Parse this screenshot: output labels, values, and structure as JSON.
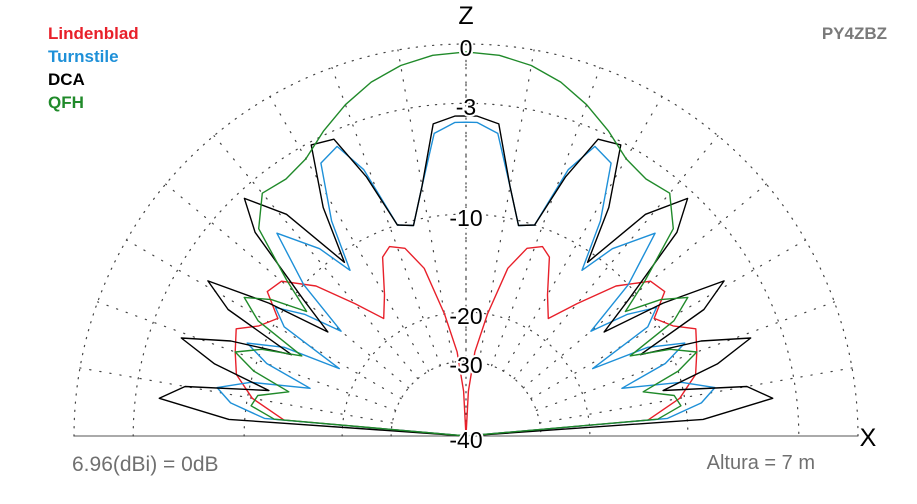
{
  "chart_data": {
    "type": "polar-elevation",
    "axis_labels": {
      "vertical": "Z",
      "horizontal": "X"
    },
    "ring_labels": [
      "0",
      "-3",
      "-10",
      "-20",
      "-30",
      "-40"
    ],
    "ring_levels_db": [
      0,
      -3,
      -10,
      -20,
      -30,
      -40
    ],
    "spoke_step_deg": 10,
    "series": [
      {
        "name": "Lindenblad",
        "color": "#e8202a",
        "points": [
          [
            0,
            -40
          ],
          [
            5,
            -14
          ],
          [
            10,
            -10.5
          ],
          [
            15,
            -9
          ],
          [
            20,
            -8.5
          ],
          [
            25,
            -8
          ],
          [
            28,
            -9.2
          ],
          [
            32,
            -10
          ],
          [
            36,
            -8.5
          ],
          [
            40,
            -8.8
          ],
          [
            45,
            -11
          ],
          [
            50,
            -15
          ],
          [
            55,
            -18
          ],
          [
            60,
            -16
          ],
          [
            65,
            -12.5
          ],
          [
            68,
            -11.8
          ],
          [
            72,
            -12.5
          ],
          [
            76,
            -15
          ],
          [
            80,
            -20
          ],
          [
            84,
            -28
          ],
          [
            87,
            -34
          ],
          [
            90,
            -40
          ]
        ]
      },
      {
        "name": "Turnstile",
        "color": "#1e90d8",
        "points": [
          [
            0,
            -40
          ],
          [
            5,
            -12
          ],
          [
            8,
            -9
          ],
          [
            11,
            -8
          ],
          [
            14,
            -10
          ],
          [
            17,
            -16
          ],
          [
            20,
            -11
          ],
          [
            23,
            -9
          ],
          [
            26,
            -12
          ],
          [
            28,
            -18
          ],
          [
            31,
            -11
          ],
          [
            34,
            -9.5
          ],
          [
            37,
            -12
          ],
          [
            40,
            -16
          ],
          [
            43,
            -10
          ],
          [
            47,
            -6.5
          ],
          [
            52,
            -9
          ],
          [
            55,
            -12
          ],
          [
            58,
            -8
          ],
          [
            62,
            -4.5
          ],
          [
            66,
            -4
          ],
          [
            69,
            -6
          ],
          [
            72,
            -10
          ],
          [
            76,
            -10.5
          ],
          [
            80,
            -8
          ],
          [
            84,
            -4.8
          ],
          [
            88,
            -4.2
          ],
          [
            90,
            -4.2
          ]
        ]
      },
      {
        "name": "DCA",
        "color": "#000000",
        "points": [
          [
            0,
            -40
          ],
          [
            4,
            -9
          ],
          [
            7,
            -4.5
          ],
          [
            10,
            -6
          ],
          [
            13,
            -12
          ],
          [
            16,
            -7.5
          ],
          [
            19,
            -5
          ],
          [
            22,
            -8
          ],
          [
            25,
            -13
          ],
          [
            28,
            -7
          ],
          [
            31,
            -5
          ],
          [
            34,
            -9
          ],
          [
            37,
            -15
          ],
          [
            40,
            -11
          ],
          [
            44,
            -5.5
          ],
          [
            47,
            -3.5
          ],
          [
            51,
            -6
          ],
          [
            55,
            -11
          ],
          [
            58,
            -7
          ],
          [
            62,
            -3.2
          ],
          [
            66,
            -3.5
          ],
          [
            69,
            -6.5
          ],
          [
            72,
            -10
          ],
          [
            76,
            -10.5
          ],
          [
            80,
            -8
          ],
          [
            84,
            -4.2
          ],
          [
            88,
            -3.8
          ],
          [
            90,
            -3.8
          ]
        ]
      },
      {
        "name": "QFH",
        "color": "#208a2a",
        "points": [
          [
            0,
            -40
          ],
          [
            5,
            -13
          ],
          [
            8,
            -10.5
          ],
          [
            11,
            -11
          ],
          [
            14,
            -14
          ],
          [
            17,
            -10
          ],
          [
            20,
            -8.5
          ],
          [
            23,
            -10
          ],
          [
            26,
            -14
          ],
          [
            29,
            -9
          ],
          [
            32,
            -7.5
          ],
          [
            35,
            -9
          ],
          [
            38,
            -12
          ],
          [
            41,
            -9
          ],
          [
            45,
            -5.5
          ],
          [
            50,
            -4
          ],
          [
            55,
            -4.2
          ],
          [
            60,
            -3.8
          ],
          [
            65,
            -2.8
          ],
          [
            70,
            -2
          ],
          [
            75,
            -1.3
          ],
          [
            80,
            -0.8
          ],
          [
            85,
            -0.5
          ],
          [
            90,
            -0.4
          ]
        ]
      }
    ]
  },
  "legend": [
    "Lindenblad",
    "Turnstile",
    "DCA",
    "QFH"
  ],
  "callsign": "PY4ZBZ",
  "footer": {
    "reference": "6.96(dBi) = 0dB",
    "height": "Altura = 7 m"
  }
}
